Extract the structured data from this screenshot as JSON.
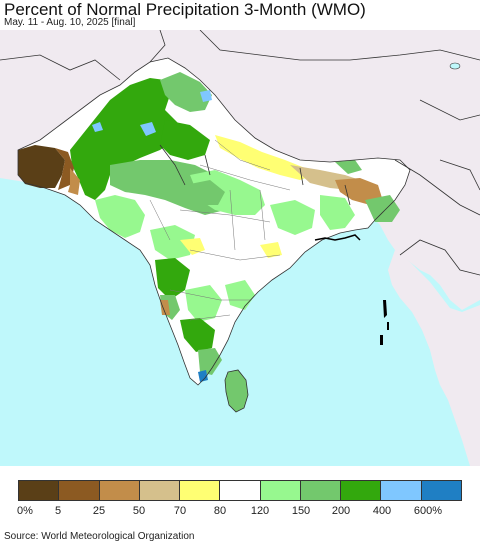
{
  "title": "Percent of Normal Precipitation 3-Month (WMO)",
  "subtitle": "May. 11 - Aug. 10, 2025 [final]",
  "legend": {
    "colors": [
      "#5a3f17",
      "#8c5a22",
      "#c28d4a",
      "#d5c08c",
      "#ffff73",
      "#ffffff",
      "#97f88f",
      "#73c86d",
      "#33a80d",
      "#7fc7ff",
      "#1f7fc4"
    ],
    "labels": [
      "0%",
      "5",
      "25",
      "50",
      "70",
      "80",
      "120",
      "150",
      "200",
      "400",
      "600%"
    ]
  },
  "source": "Source: World Meteorological Organization"
}
